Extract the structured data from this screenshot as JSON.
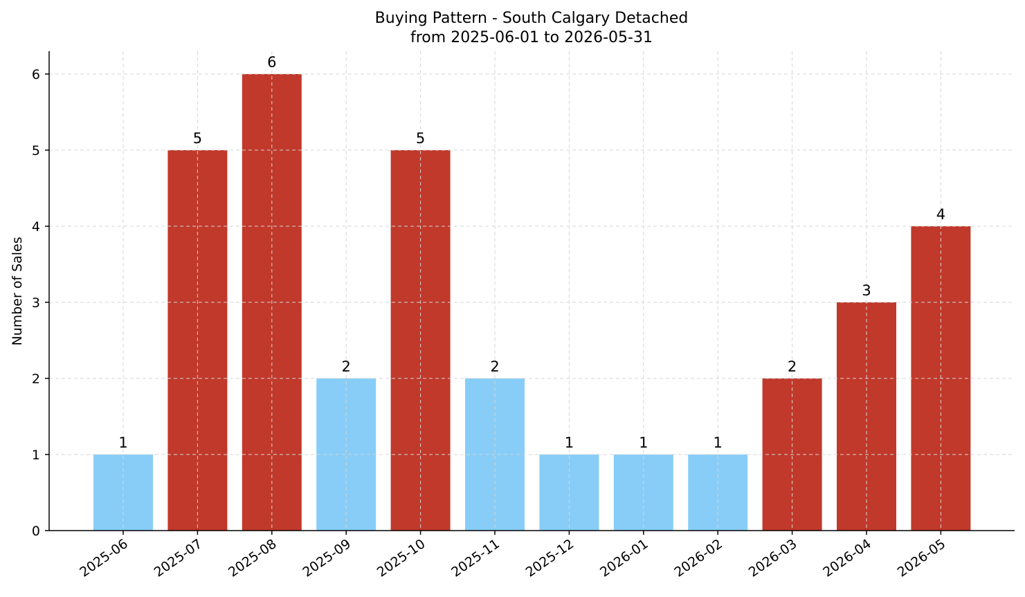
{
  "chart_data": {
    "type": "bar",
    "title": "Buying Pattern - South Calgary Detached",
    "subtitle": "from 2025-06-01 to 2026-05-31",
    "xlabel": "",
    "ylabel": "Number of Sales",
    "ylim": [
      0,
      6.3
    ],
    "yticks": [
      0,
      1,
      2,
      3,
      4,
      5,
      6
    ],
    "grid": true,
    "categories": [
      "2025-06",
      "2025-07",
      "2025-08",
      "2025-09",
      "2025-10",
      "2025-11",
      "2025-12",
      "2026-01",
      "2026-02",
      "2026-03",
      "2026-04",
      "2026-05"
    ],
    "values": [
      1,
      5,
      6,
      2,
      5,
      2,
      1,
      1,
      1,
      2,
      3,
      4
    ],
    "bar_colors": [
      "#87cdf8",
      "#c0392b",
      "#c0392b",
      "#87cdf8",
      "#c0392b",
      "#87cdf8",
      "#87cdf8",
      "#87cdf8",
      "#87cdf8",
      "#c0392b",
      "#c0392b",
      "#c0392b"
    ]
  }
}
